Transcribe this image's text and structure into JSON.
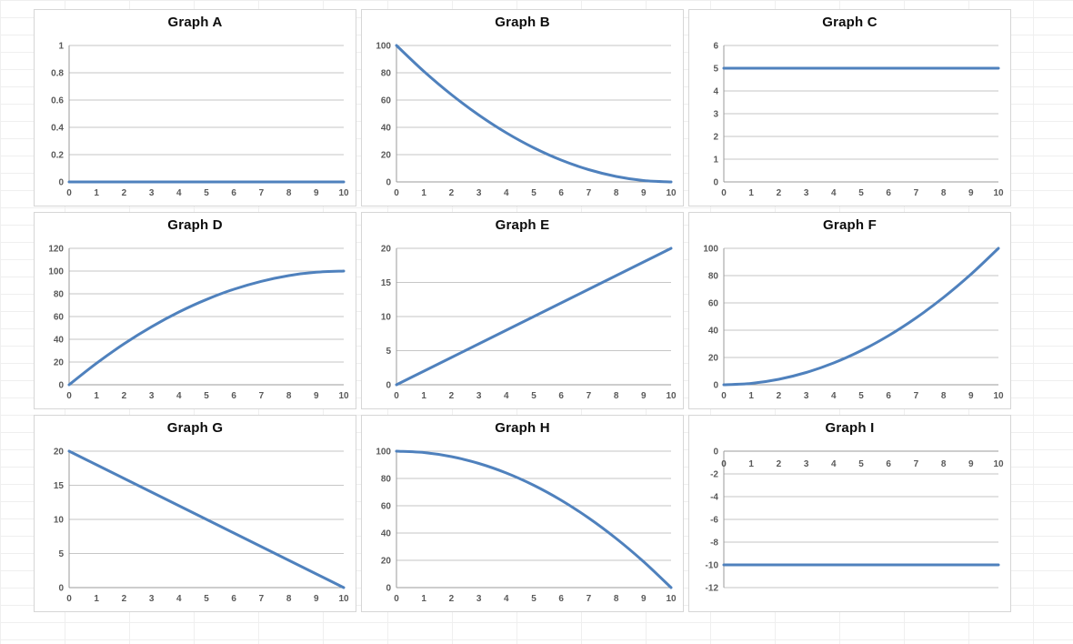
{
  "colors": {
    "series_line": "#4F81BD",
    "gridline": "#c6c6c6",
    "axis": "#9b9b9b",
    "tick_label": "#595959",
    "chart_border": "#d6d6d6",
    "title": "#0d0d0d",
    "sheet_gridline": "#efefef"
  },
  "chart_data": [
    {
      "type": "line",
      "title": "Graph A",
      "x": [
        0,
        1,
        2,
        3,
        4,
        5,
        6,
        7,
        8,
        9,
        10
      ],
      "y": [
        0,
        0,
        0,
        0,
        0,
        0,
        0,
        0,
        0,
        0,
        0
      ],
      "xlim": [
        0,
        10
      ],
      "ylim": [
        0,
        1
      ],
      "yticks": [
        0,
        0.2,
        0.4,
        0.6,
        0.8,
        1
      ],
      "xticks": [
        0,
        1,
        2,
        3,
        4,
        5,
        6,
        7,
        8,
        9,
        10
      ],
      "xlabel_position": "bottom",
      "grid": "horizontal",
      "legend": "none"
    },
    {
      "type": "line",
      "title": "Graph B",
      "x": [
        0,
        1,
        2,
        3,
        4,
        5,
        6,
        7,
        8,
        9,
        10
      ],
      "y": [
        100,
        81,
        64,
        49,
        36,
        25,
        16,
        9,
        4,
        1,
        0
      ],
      "xlim": [
        0,
        10
      ],
      "ylim": [
        0,
        100
      ],
      "yticks": [
        0,
        20,
        40,
        60,
        80,
        100
      ],
      "xticks": [
        0,
        1,
        2,
        3,
        4,
        5,
        6,
        7,
        8,
        9,
        10
      ],
      "xlabel_position": "bottom",
      "grid": "horizontal",
      "legend": "none"
    },
    {
      "type": "line",
      "title": "Graph C",
      "x": [
        0,
        1,
        2,
        3,
        4,
        5,
        6,
        7,
        8,
        9,
        10
      ],
      "y": [
        5,
        5,
        5,
        5,
        5,
        5,
        5,
        5,
        5,
        5,
        5
      ],
      "xlim": [
        0,
        10
      ],
      "ylim": [
        0,
        6
      ],
      "yticks": [
        0,
        1,
        2,
        3,
        4,
        5,
        6
      ],
      "xticks": [
        0,
        1,
        2,
        3,
        4,
        5,
        6,
        7,
        8,
        9,
        10
      ],
      "xlabel_position": "bottom",
      "grid": "horizontal",
      "legend": "none"
    },
    {
      "type": "line",
      "title": "Graph D",
      "x": [
        0,
        1,
        2,
        3,
        4,
        5,
        6,
        7,
        8,
        9,
        10
      ],
      "y": [
        0,
        19,
        36,
        51,
        64,
        75,
        84,
        91,
        96,
        99,
        100
      ],
      "xlim": [
        0,
        10
      ],
      "ylim": [
        0,
        120
      ],
      "yticks": [
        0,
        20,
        40,
        60,
        80,
        100,
        120
      ],
      "xticks": [
        0,
        1,
        2,
        3,
        4,
        5,
        6,
        7,
        8,
        9,
        10
      ],
      "xlabel_position": "bottom",
      "grid": "horizontal",
      "legend": "none"
    },
    {
      "type": "line",
      "title": "Graph E",
      "x": [
        0,
        1,
        2,
        3,
        4,
        5,
        6,
        7,
        8,
        9,
        10
      ],
      "y": [
        0,
        2,
        4,
        6,
        8,
        10,
        12,
        14,
        16,
        18,
        20
      ],
      "xlim": [
        0,
        10
      ],
      "ylim": [
        0,
        20
      ],
      "yticks": [
        0,
        5,
        10,
        15,
        20
      ],
      "xticks": [
        0,
        1,
        2,
        3,
        4,
        5,
        6,
        7,
        8,
        9,
        10
      ],
      "xlabel_position": "bottom",
      "grid": "horizontal",
      "legend": "none"
    },
    {
      "type": "line",
      "title": "Graph F",
      "x": [
        0,
        1,
        2,
        3,
        4,
        5,
        6,
        7,
        8,
        9,
        10
      ],
      "y": [
        0,
        1,
        4,
        9,
        16,
        25,
        36,
        49,
        64,
        81,
        100
      ],
      "xlim": [
        0,
        10
      ],
      "ylim": [
        0,
        100
      ],
      "yticks": [
        0,
        20,
        40,
        60,
        80,
        100
      ],
      "xticks": [
        0,
        1,
        2,
        3,
        4,
        5,
        6,
        7,
        8,
        9,
        10
      ],
      "xlabel_position": "bottom",
      "grid": "horizontal",
      "legend": "none"
    },
    {
      "type": "line",
      "title": "Graph G",
      "x": [
        0,
        1,
        2,
        3,
        4,
        5,
        6,
        7,
        8,
        9,
        10
      ],
      "y": [
        20,
        18,
        16,
        14,
        12,
        10,
        8,
        6,
        4,
        2,
        0
      ],
      "xlim": [
        0,
        10
      ],
      "ylim": [
        0,
        20
      ],
      "yticks": [
        0,
        5,
        10,
        15,
        20
      ],
      "xticks": [
        0,
        1,
        2,
        3,
        4,
        5,
        6,
        7,
        8,
        9,
        10
      ],
      "xlabel_position": "bottom",
      "grid": "horizontal",
      "legend": "none"
    },
    {
      "type": "line",
      "title": "Graph H",
      "x": [
        0,
        1,
        2,
        3,
        4,
        5,
        6,
        7,
        8,
        9,
        10
      ],
      "y": [
        100,
        99,
        96,
        91,
        84,
        75,
        64,
        51,
        36,
        19,
        0
      ],
      "xlim": [
        0,
        10
      ],
      "ylim": [
        0,
        100
      ],
      "yticks": [
        0,
        20,
        40,
        60,
        80,
        100
      ],
      "xticks": [
        0,
        1,
        2,
        3,
        4,
        5,
        6,
        7,
        8,
        9,
        10
      ],
      "xlabel_position": "bottom",
      "grid": "horizontal",
      "legend": "none"
    },
    {
      "type": "line",
      "title": "Graph I",
      "x": [
        0,
        1,
        2,
        3,
        4,
        5,
        6,
        7,
        8,
        9,
        10
      ],
      "y": [
        -10,
        -10,
        -10,
        -10,
        -10,
        -10,
        -10,
        -10,
        -10,
        -10,
        -10
      ],
      "xlim": [
        0,
        10
      ],
      "ylim": [
        -12,
        0
      ],
      "yticks": [
        -12,
        -10,
        -8,
        -6,
        -4,
        -2,
        0
      ],
      "xticks": [
        0,
        1,
        2,
        3,
        4,
        5,
        6,
        7,
        8,
        9,
        10
      ],
      "xlabel_position": "top",
      "grid": "horizontal",
      "legend": "none"
    }
  ]
}
